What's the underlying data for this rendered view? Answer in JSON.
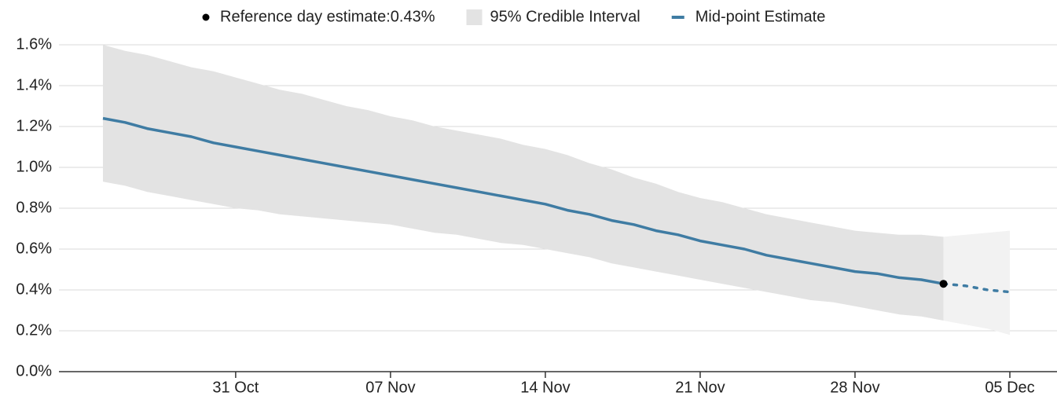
{
  "chart_data": {
    "type": "line",
    "categories": [
      null,
      null,
      null,
      null,
      null,
      null,
      "31 Oct",
      null,
      null,
      null,
      null,
      null,
      null,
      "07 Nov",
      null,
      null,
      null,
      null,
      null,
      null,
      "14 Nov",
      null,
      null,
      null,
      null,
      null,
      null,
      "21 Nov",
      null,
      null,
      null,
      null,
      null,
      null,
      "28 Nov",
      null,
      null,
      null,
      null,
      null,
      null,
      "05 Dec"
    ],
    "ylim": [
      0,
      1.6
    ],
    "yticks": [
      {
        "value": 0,
        "label": "0.0%"
      },
      {
        "value": 0.2,
        "label": "0.2%"
      },
      {
        "value": 0.4,
        "label": "0.4%"
      },
      {
        "value": 0.6,
        "label": "0.6%"
      },
      {
        "value": 0.8,
        "label": "0.8%"
      },
      {
        "value": 1.0,
        "label": "1.0%"
      },
      {
        "value": 1.2,
        "label": "1.2%"
      },
      {
        "value": 1.4,
        "label": "1.4%"
      },
      {
        "value": 1.6,
        "label": "1.6%"
      }
    ],
    "grid": true,
    "series": [
      {
        "name": "Reference day estimate:0.43%",
        "kind": "point",
        "color": "#000000",
        "values": [
          null,
          null,
          null,
          null,
          null,
          null,
          null,
          null,
          null,
          null,
          null,
          null,
          null,
          null,
          null,
          null,
          null,
          null,
          null,
          null,
          null,
          null,
          null,
          null,
          null,
          null,
          null,
          null,
          null,
          null,
          null,
          null,
          null,
          null,
          null,
          null,
          null,
          null,
          0.43,
          null,
          null,
          null
        ]
      },
      {
        "name": "95% Credible Interval",
        "kind": "band",
        "color": "#e3e3e3",
        "upper": [
          1.6,
          1.57,
          1.55,
          1.52,
          1.49,
          1.47,
          1.44,
          1.41,
          1.38,
          1.36,
          1.33,
          1.3,
          1.28,
          1.25,
          1.23,
          1.2,
          1.18,
          1.16,
          1.14,
          1.11,
          1.09,
          1.06,
          1.02,
          0.99,
          0.95,
          0.92,
          0.88,
          0.85,
          0.83,
          0.8,
          0.77,
          0.75,
          0.73,
          0.71,
          0.69,
          0.68,
          0.67,
          0.67,
          0.66,
          null,
          null,
          null
        ],
        "lower": [
          0.93,
          0.91,
          0.88,
          0.86,
          0.84,
          0.82,
          0.8,
          0.79,
          0.77,
          0.76,
          0.75,
          0.74,
          0.73,
          0.72,
          0.7,
          0.68,
          0.67,
          0.65,
          0.63,
          0.62,
          0.6,
          0.58,
          0.56,
          0.53,
          0.51,
          0.49,
          0.47,
          0.45,
          0.43,
          0.41,
          0.39,
          0.37,
          0.35,
          0.34,
          0.32,
          0.3,
          0.28,
          0.27,
          0.25,
          null,
          null,
          null
        ]
      },
      {
        "kind": "band",
        "color": "#f2f2f2",
        "upper": [
          null,
          null,
          null,
          null,
          null,
          null,
          null,
          null,
          null,
          null,
          null,
          null,
          null,
          null,
          null,
          null,
          null,
          null,
          null,
          null,
          null,
          null,
          null,
          null,
          null,
          null,
          null,
          null,
          null,
          null,
          null,
          null,
          null,
          null,
          null,
          null,
          null,
          null,
          0.66,
          0.67,
          0.68,
          0.69
        ],
        "lower": [
          null,
          null,
          null,
          null,
          null,
          null,
          null,
          null,
          null,
          null,
          null,
          null,
          null,
          null,
          null,
          null,
          null,
          null,
          null,
          null,
          null,
          null,
          null,
          null,
          null,
          null,
          null,
          null,
          null,
          null,
          null,
          null,
          null,
          null,
          null,
          null,
          null,
          null,
          0.25,
          0.23,
          0.21,
          0.18
        ]
      },
      {
        "name": "Mid-point Estimate",
        "kind": "line",
        "color": "#3f7ca3",
        "values": [
          1.24,
          1.22,
          1.19,
          1.17,
          1.15,
          1.12,
          1.1,
          1.08,
          1.06,
          1.04,
          1.02,
          1.0,
          0.98,
          0.96,
          0.94,
          0.92,
          0.9,
          0.88,
          0.86,
          0.84,
          0.82,
          0.79,
          0.77,
          0.74,
          0.72,
          0.69,
          0.67,
          0.64,
          0.62,
          0.6,
          0.57,
          0.55,
          0.53,
          0.51,
          0.49,
          0.48,
          0.46,
          0.45,
          0.43,
          null,
          null,
          null
        ]
      },
      {
        "kind": "line",
        "dashed": true,
        "color": "#3f7ca3",
        "values": [
          null,
          null,
          null,
          null,
          null,
          null,
          null,
          null,
          null,
          null,
          null,
          null,
          null,
          null,
          null,
          null,
          null,
          null,
          null,
          null,
          null,
          null,
          null,
          null,
          null,
          null,
          null,
          null,
          null,
          null,
          null,
          null,
          null,
          null,
          null,
          null,
          null,
          null,
          0.43,
          0.42,
          0.4,
          0.39
        ]
      }
    ]
  }
}
